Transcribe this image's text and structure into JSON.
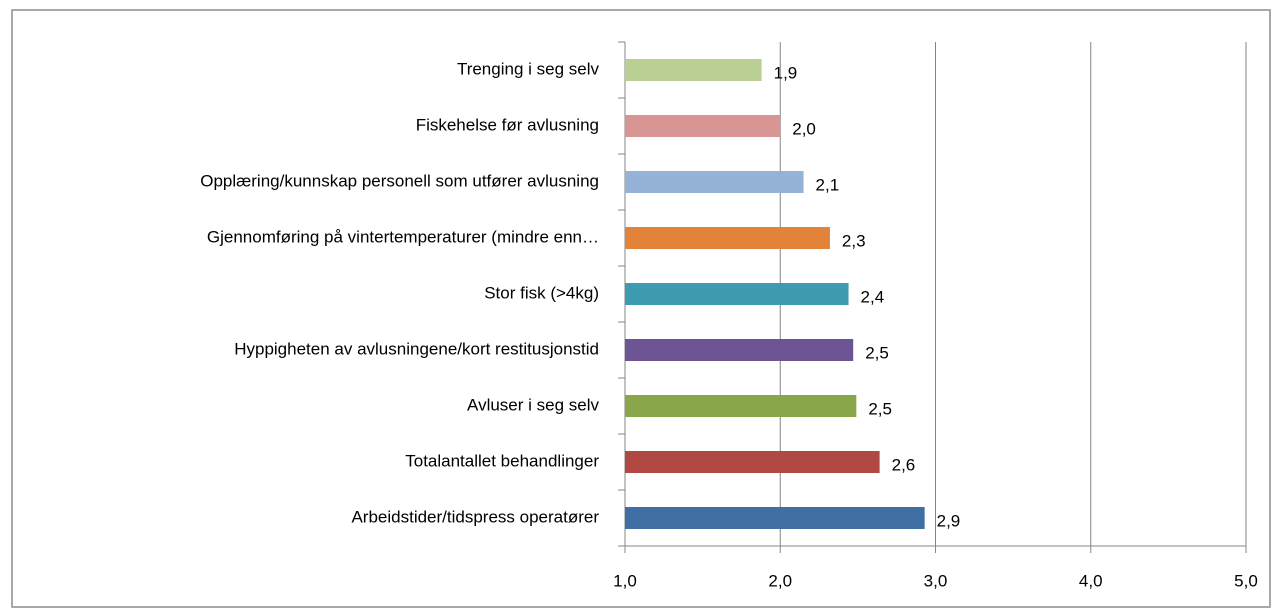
{
  "chart_data": {
    "type": "barh",
    "categories": [
      "Trenging i seg selv",
      "Fiskehelse før avlusning",
      "Opplæring/kunnskap personell som utfører avlusning",
      "Gjennomføring på vintertemperaturer (mindre enn…",
      "Stor fisk (>4kg)",
      "Hyppigheten av avlusningene/kort restitusjonstid",
      "Avluser i seg selv",
      "Totalantallet behandlinger",
      "Arbeidstider/tidspress operatører"
    ],
    "values": [
      1.88,
      2.0,
      2.15,
      2.32,
      2.44,
      2.47,
      2.49,
      2.64,
      2.93
    ],
    "value_labels": [
      "1,9",
      "2,0",
      "2,1",
      "2,3",
      "2,4",
      "2,5",
      "2,5",
      "2,6",
      "2,9"
    ],
    "colors": [
      "#b9cf94",
      "#d99594",
      "#95b3d7",
      "#e3833a",
      "#3f9bb0",
      "#6d5593",
      "#8aa64a",
      "#b04844",
      "#3f6fa5"
    ],
    "xlim": [
      1,
      5
    ],
    "xticks": [
      {
        "value": 1,
        "label": "1,0"
      },
      {
        "value": 2,
        "label": "2,0"
      },
      {
        "value": 3,
        "label": "3,0"
      },
      {
        "value": 4,
        "label": "4,0"
      },
      {
        "value": 5,
        "label": "5,0"
      }
    ],
    "grid": true
  }
}
